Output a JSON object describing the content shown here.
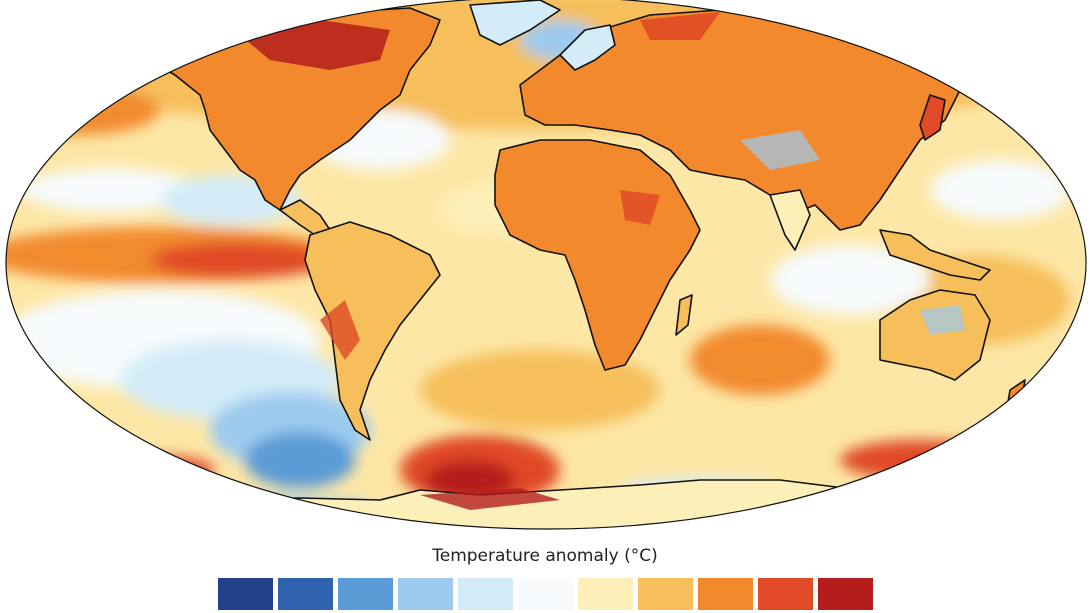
{
  "legend": {
    "title": "Temperature anomaly (°C)",
    "swatches": [
      {
        "color": "#22418a"
      },
      {
        "color": "#2f63ad"
      },
      {
        "color": "#5b9bd5"
      },
      {
        "color": "#9ccbef"
      },
      {
        "color": "#d3ecf8"
      },
      {
        "color": "#f7fbfd"
      },
      {
        "color": "#fdefb8"
      },
      {
        "color": "#f6bf5c"
      },
      {
        "color": "#f28a2d"
      },
      {
        "color": "#e04a26"
      },
      {
        "color": "#b51d1d"
      }
    ]
  },
  "palette": {
    "ocean_base": "#fde7a6",
    "warm": "#f6bf5c",
    "hot": "#f28a2d",
    "hotter": "#e04a26",
    "hottest": "#b51d1d",
    "cool": "#d3ecf8",
    "cooler": "#9ccbef",
    "cold": "#5b9bd5",
    "colder": "#2f63ad",
    "neutral": "#f7fbfd",
    "coast": "#111111"
  }
}
